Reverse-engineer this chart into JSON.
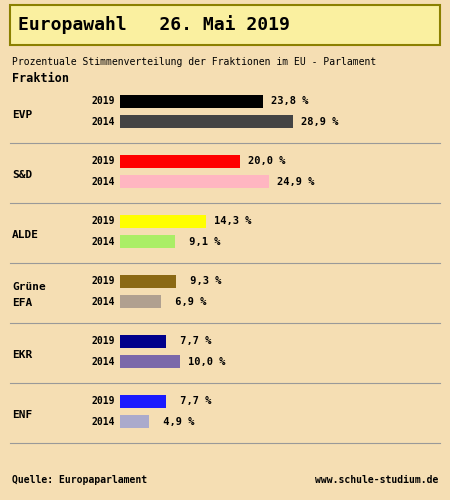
{
  "title": "Europawahl   26. Mai 2019",
  "subtitle": "Prozentuale Stimmenverteilung der Fraktionen im EU - Parlament",
  "col_header": "Fraktion",
  "background_color": "#f5deb3",
  "title_box_color": "#faf0a0",
  "title_box_edge": "#8B8000",
  "groups": [
    {
      "label": "EVP",
      "label2": null,
      "bars": [
        {
          "year": "2019",
          "value": 23.8,
          "color": "#000000",
          "label": "23,8 %"
        },
        {
          "year": "2014",
          "value": 28.9,
          "color": "#444444",
          "label": "28,9 %"
        }
      ]
    },
    {
      "label": "S&D",
      "label2": null,
      "bars": [
        {
          "year": "2019",
          "value": 20.0,
          "color": "#ff0000",
          "label": "20,0 %"
        },
        {
          "year": "2014",
          "value": 24.9,
          "color": "#ffb6c1",
          "label": "24,9 %"
        }
      ]
    },
    {
      "label": "ALDE",
      "label2": null,
      "bars": [
        {
          "year": "2019",
          "value": 14.3,
          "color": "#ffff00",
          "label": "14,3 %"
        },
        {
          "year": "2014",
          "value": 9.1,
          "color": "#aaee66",
          "label": " 9,1 %"
        }
      ]
    },
    {
      "label": "Grüne",
      "label2": "EFA",
      "bars": [
        {
          "year": "2019",
          "value": 9.3,
          "color": "#8B6914",
          "label": " 9,3 %"
        },
        {
          "year": "2014",
          "value": 6.9,
          "color": "#b0a090",
          "label": " 6,9 %"
        }
      ]
    },
    {
      "label": "EKR",
      "label2": null,
      "bars": [
        {
          "year": "2019",
          "value": 7.7,
          "color": "#00008B",
          "label": " 7,7 %"
        },
        {
          "year": "2014",
          "value": 10.0,
          "color": "#7B68AA",
          "label": "10,0 %"
        }
      ]
    },
    {
      "label": "ENF",
      "label2": null,
      "bars": [
        {
          "year": "2019",
          "value": 7.7,
          "color": "#1a1aff",
          "label": " 7,7 %"
        },
        {
          "year": "2014",
          "value": 4.9,
          "color": "#aaaacc",
          "label": " 4,9 %"
        }
      ]
    }
  ],
  "footer_left": "Quelle: Europaparlament",
  "footer_right": "www.schule-studium.de",
  "max_value": 30,
  "title_fontsize": 13,
  "subtitle_fontsize": 7,
  "header_fontsize": 8.5,
  "group_label_fontsize": 8,
  "year_fontsize": 7,
  "bar_label_fontsize": 7.5,
  "footer_fontsize": 7
}
